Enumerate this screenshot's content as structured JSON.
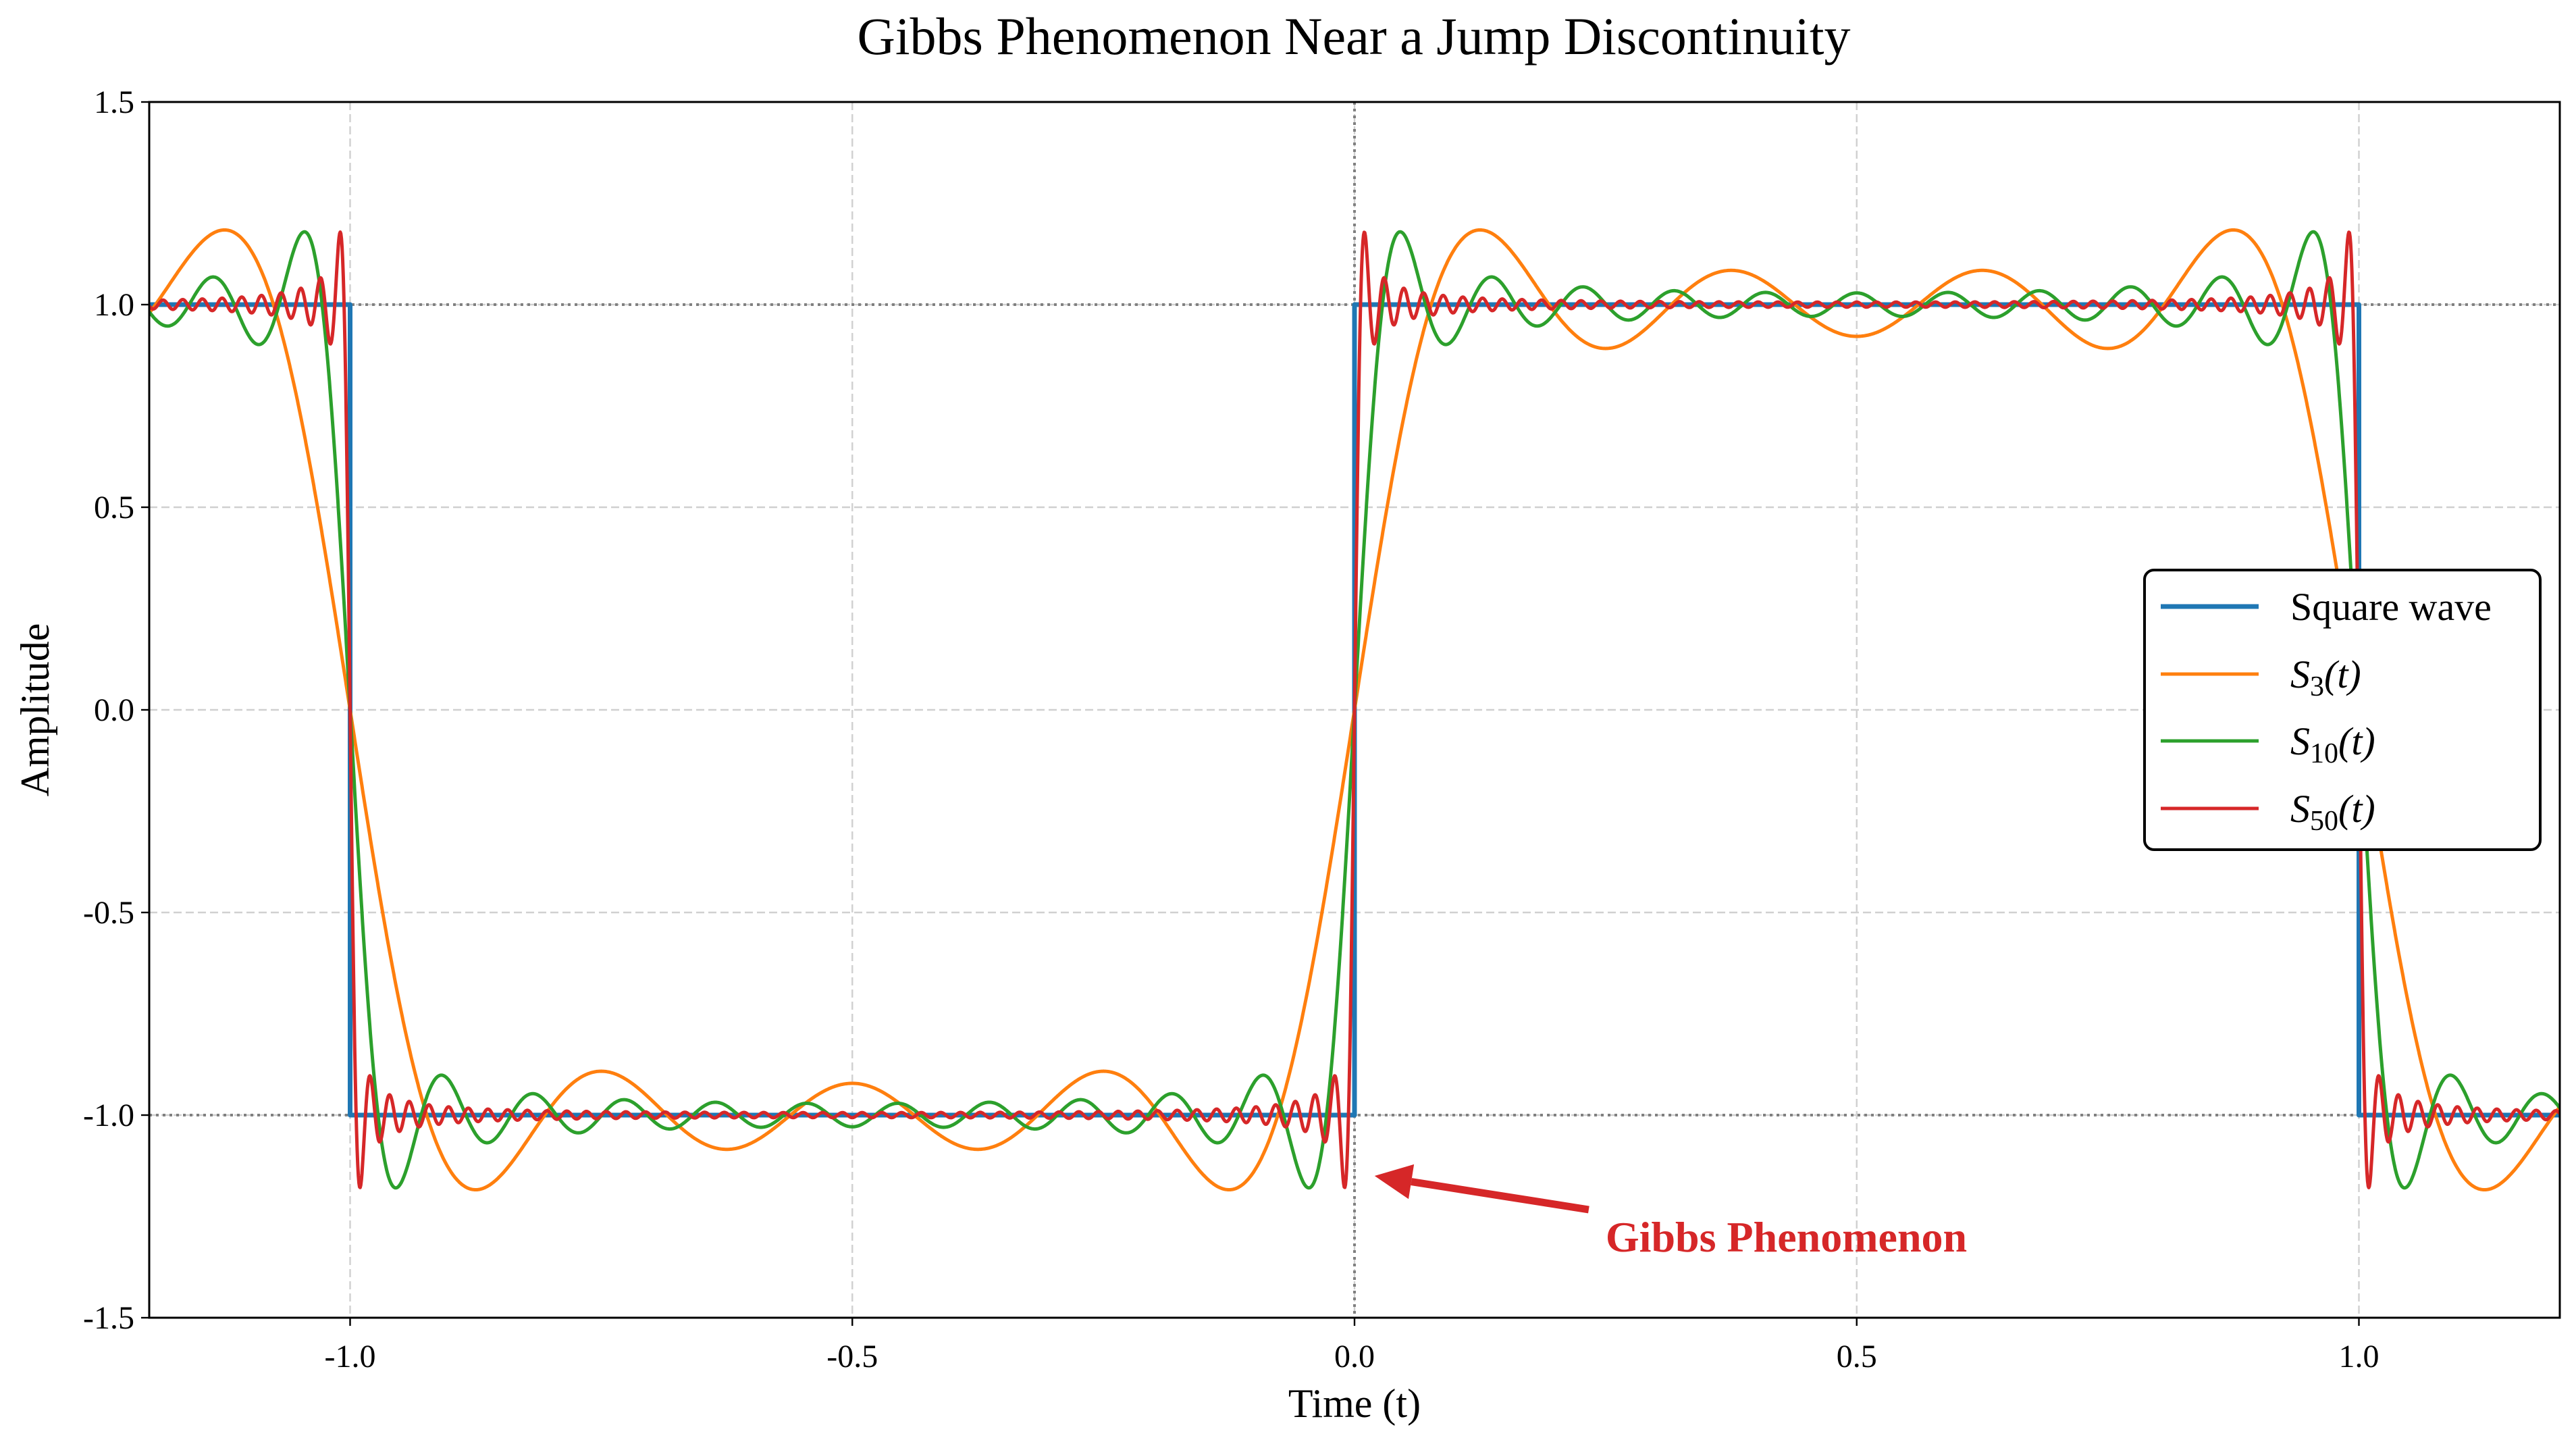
{
  "chart_data": {
    "type": "line",
    "title": "Gibbs Phenomenon Near a Jump Discontinuity",
    "xlabel": "Time (t)",
    "ylabel": "Amplitude",
    "xlim": [
      -1.2,
      1.2
    ],
    "ylim": [
      -1.5,
      1.5
    ],
    "xticks": [
      -1.0,
      -0.5,
      0.0,
      0.5,
      1.0
    ],
    "xtick_labels": [
      "-1.0",
      "-0.5",
      "0.0",
      "0.5",
      "1.0"
    ],
    "yticks": [
      -1.5,
      -1.0,
      -0.5,
      0.0,
      0.5,
      1.0,
      1.5
    ],
    "ytick_labels": [
      "-1.5",
      "-1.0",
      "-0.5",
      "0.0",
      "0.5",
      "1.0",
      "1.5"
    ],
    "grid": true,
    "legend_position": "center-right",
    "reference_lines": {
      "horizontal": [
        1.0,
        -1.0
      ],
      "vertical": [
        0.0
      ],
      "style": "dotted",
      "color": "#808080"
    },
    "series": [
      {
        "name": "Square wave",
        "legend_base": "Square wave",
        "legend_sub": "",
        "legend_tail": "",
        "kind": "square",
        "period": 2,
        "levels": [
          -1,
          1
        ],
        "color": "#1f77b4"
      },
      {
        "name": "S3(t)",
        "legend_base": "S",
        "legend_sub": "3",
        "legend_tail": "(t)",
        "kind": "fourier",
        "n": 3,
        "color": "#ff7f0e"
      },
      {
        "name": "S10(t)",
        "legend_base": "S",
        "legend_sub": "10",
        "legend_tail": "(t)",
        "kind": "fourier",
        "n": 10,
        "color": "#2ca02c"
      },
      {
        "name": "S50(t)",
        "legend_base": "S",
        "legend_sub": "50",
        "legend_tail": "(t)",
        "kind": "fourier",
        "n": 50,
        "color": "#d62728"
      }
    ],
    "annotation": {
      "text": "Gibbs Phenomenon",
      "xy": [
        0.02,
        -1.15
      ],
      "xytext": [
        0.25,
        -1.3
      ],
      "color": "#d62728"
    }
  }
}
